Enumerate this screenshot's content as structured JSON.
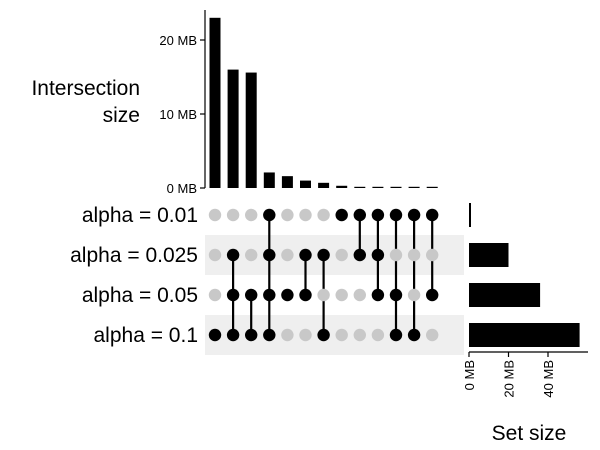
{
  "chart_data": {
    "type": "upset",
    "unit": "MB",
    "sets": [
      {
        "name": "alpha = 0.01",
        "size": 1
      },
      {
        "name": "alpha = 0.025",
        "size": 20
      },
      {
        "name": "alpha = 0.05",
        "size": 36
      },
      {
        "name": "alpha = 0.1",
        "size": 56
      }
    ],
    "intersections": [
      {
        "members": [
          "alpha = 0.1"
        ],
        "size": 23
      },
      {
        "members": [
          "alpha = 0.025",
          "alpha = 0.05",
          "alpha = 0.1"
        ],
        "size": 16
      },
      {
        "members": [
          "alpha = 0.05",
          "alpha = 0.1"
        ],
        "size": 15.6
      },
      {
        "members": [
          "alpha = 0.01",
          "alpha = 0.025",
          "alpha = 0.05",
          "alpha = 0.1"
        ],
        "size": 2.1
      },
      {
        "members": [
          "alpha = 0.05"
        ],
        "size": 1.6
      },
      {
        "members": [
          "alpha = 0.025",
          "alpha = 0.05"
        ],
        "size": 1.0
      },
      {
        "members": [
          "alpha = 0.025",
          "alpha = 0.1"
        ],
        "size": 0.7
      },
      {
        "members": [
          "alpha = 0.01"
        ],
        "size": 0.3
      },
      {
        "members": [
          "alpha = 0.01",
          "alpha = 0.025"
        ],
        "size": 0.12
      },
      {
        "members": [
          "alpha = 0.01",
          "alpha = 0.025",
          "alpha = 0.05"
        ],
        "size": 0.1
      },
      {
        "members": [
          "alpha = 0.01",
          "alpha = 0.05",
          "alpha = 0.1"
        ],
        "size": 0.08
      },
      {
        "members": [
          "alpha = 0.01",
          "alpha = 0.1"
        ],
        "size": 0.06
      },
      {
        "members": [
          "alpha = 0.01",
          "alpha = 0.05"
        ],
        "size": 0.05
      }
    ],
    "intersection_axis": {
      "title": [
        "Intersection",
        "size"
      ],
      "ylim": [
        0,
        24
      ],
      "ticks": [
        0,
        10,
        20
      ],
      "tick_labels": [
        "0 MB",
        "10 MB",
        "20 MB"
      ]
    },
    "set_size_axis": {
      "title": "Set size",
      "xlim": [
        0,
        58
      ],
      "ticks": [
        0,
        20,
        40
      ],
      "tick_labels": [
        "0 MB",
        "20 MB",
        "40 MB"
      ]
    },
    "colors": {
      "bar": "#000000",
      "dot_active": "#000000",
      "dot_inactive": "#c8c8c8",
      "stripe": "#efefef"
    }
  }
}
